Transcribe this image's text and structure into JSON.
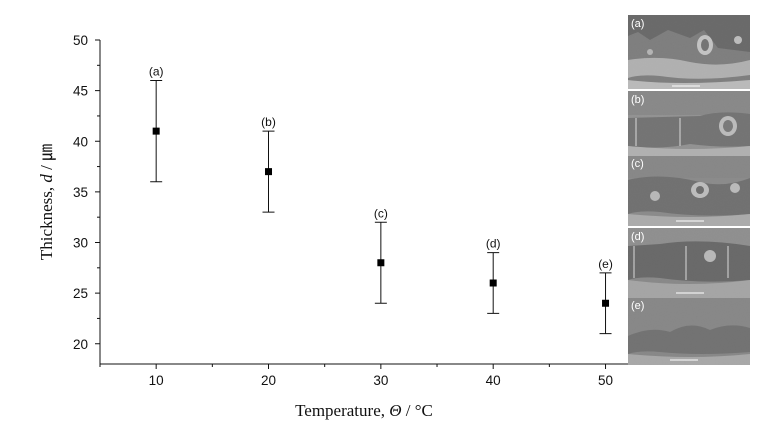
{
  "chart_data": {
    "type": "scatter",
    "title": "",
    "xlabel": "Temperature, Θ / °C",
    "ylabel": "Thickness, d / ㎛",
    "xlim": [
      5,
      52
    ],
    "ylim": [
      18,
      50
    ],
    "xticks": [
      10,
      20,
      30,
      40,
      50
    ],
    "yticks": [
      20,
      25,
      30,
      35,
      40,
      45,
      50
    ],
    "grid": false,
    "series": [
      {
        "marker": "square",
        "color": "#000000",
        "points": [
          {
            "x": 10,
            "y": 41,
            "err_low": 36,
            "err_high": 46,
            "label": "(a)"
          },
          {
            "x": 20,
            "y": 37,
            "err_low": 33,
            "err_high": 41,
            "label": "(b)"
          },
          {
            "x": 30,
            "y": 28,
            "err_low": 24,
            "err_high": 32,
            "label": "(c)"
          },
          {
            "x": 40,
            "y": 26,
            "err_low": 23,
            "err_high": 29,
            "label": "(d)"
          },
          {
            "x": 50,
            "y": 24,
            "err_low": 21,
            "err_high": 27,
            "label": "(e)"
          }
        ]
      }
    ]
  },
  "axis_title": {
    "x_text": "Temperature, ",
    "x_var": "Θ",
    "x_unit": " / °C",
    "y_text": "Thickness, ",
    "y_var": "d",
    "y_unit": " / ㎛"
  },
  "micrographs": {
    "labels": [
      "(a)",
      "(b)",
      "(c)",
      "(d)",
      "(e)"
    ]
  }
}
